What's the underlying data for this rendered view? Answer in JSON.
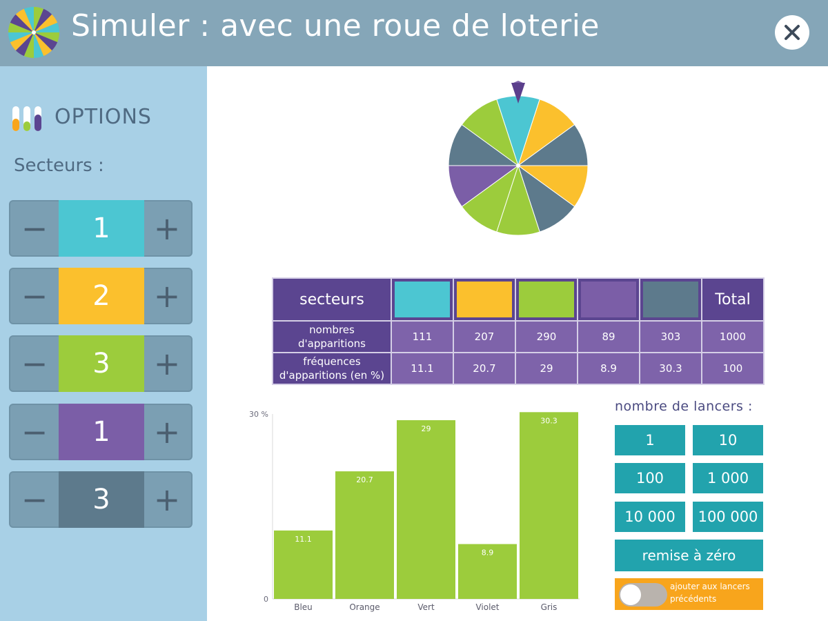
{
  "header": {
    "title": "Simuler : avec une roue de loterie",
    "close_icon": "close-icon"
  },
  "sidebar": {
    "options_label": "OPTIONS",
    "sectors_label": "Secteurs  :",
    "steppers": [
      {
        "minus": "−",
        "plus": "+",
        "value": "1",
        "color": "#4cc6d2"
      },
      {
        "minus": "−",
        "plus": "+",
        "value": "2",
        "color": "#fbc02d"
      },
      {
        "minus": "−",
        "plus": "+",
        "value": "3",
        "color": "#9ccc3c"
      },
      {
        "minus": "−",
        "plus": "+",
        "value": "1",
        "color": "#7b5ea7"
      },
      {
        "minus": "−",
        "plus": "+",
        "value": "3",
        "color": "#5d7a8c"
      }
    ]
  },
  "table": {
    "header_label": "secteurs",
    "total_label": "Total",
    "swatches": [
      "#4cc6d2",
      "#fbc02d",
      "#9ccc3c",
      "#7b5ea7",
      "#5d7a8c"
    ],
    "rows": [
      {
        "label_line1": "nombres",
        "label_line2": "d'apparitions",
        "values": [
          "111",
          "207",
          "290",
          "89",
          "303",
          "1000"
        ]
      },
      {
        "label_line1": "fréquences",
        "label_line2": "d'apparitions (en %)",
        "values": [
          "11.1",
          "20.7",
          "29",
          "8.9",
          "30.3",
          "100"
        ]
      }
    ]
  },
  "chart_data": {
    "type": "bar",
    "categories": [
      "Bleu",
      "Orange",
      "Vert",
      "Violet",
      "Gris"
    ],
    "values": [
      11.1,
      20.7,
      29,
      8.9,
      30.3
    ],
    "value_labels": [
      "11.1",
      "20.7",
      "29",
      "8.9",
      "30.3"
    ],
    "y_top_label": "30 %",
    "y_zero_label": "0",
    "ylim": [
      0,
      30
    ],
    "bar_color": "#9ccc3c",
    "grid": false
  },
  "controls": {
    "launch_label": "nombre de lancers :",
    "buttons": [
      "1",
      "10",
      "100",
      "1 000",
      "10 000",
      "100 000"
    ],
    "reset": "remise à zéro",
    "toggle_line1": "ajouter aux lancers",
    "toggle_line2": "précédents",
    "toggle_on": false
  },
  "wheel": {
    "sector_colors": [
      "#4cc6d2",
      "#fbc02d",
      "#5d7a8c",
      "#fbc02d",
      "#5d7a8c",
      "#9ccc3c",
      "#9ccc3c",
      "#7b5ea7",
      "#5d7a8c",
      "#9ccc3c"
    ],
    "pointer_color": "#5b3f8c"
  },
  "colors": {
    "accent": "#22a3ad",
    "header": "#85a6b8",
    "sidebar": "#a8d0e6",
    "table_dark": "#5b4590",
    "table_light": "#7e63aa",
    "toggle_bg": "#f8a51c"
  }
}
